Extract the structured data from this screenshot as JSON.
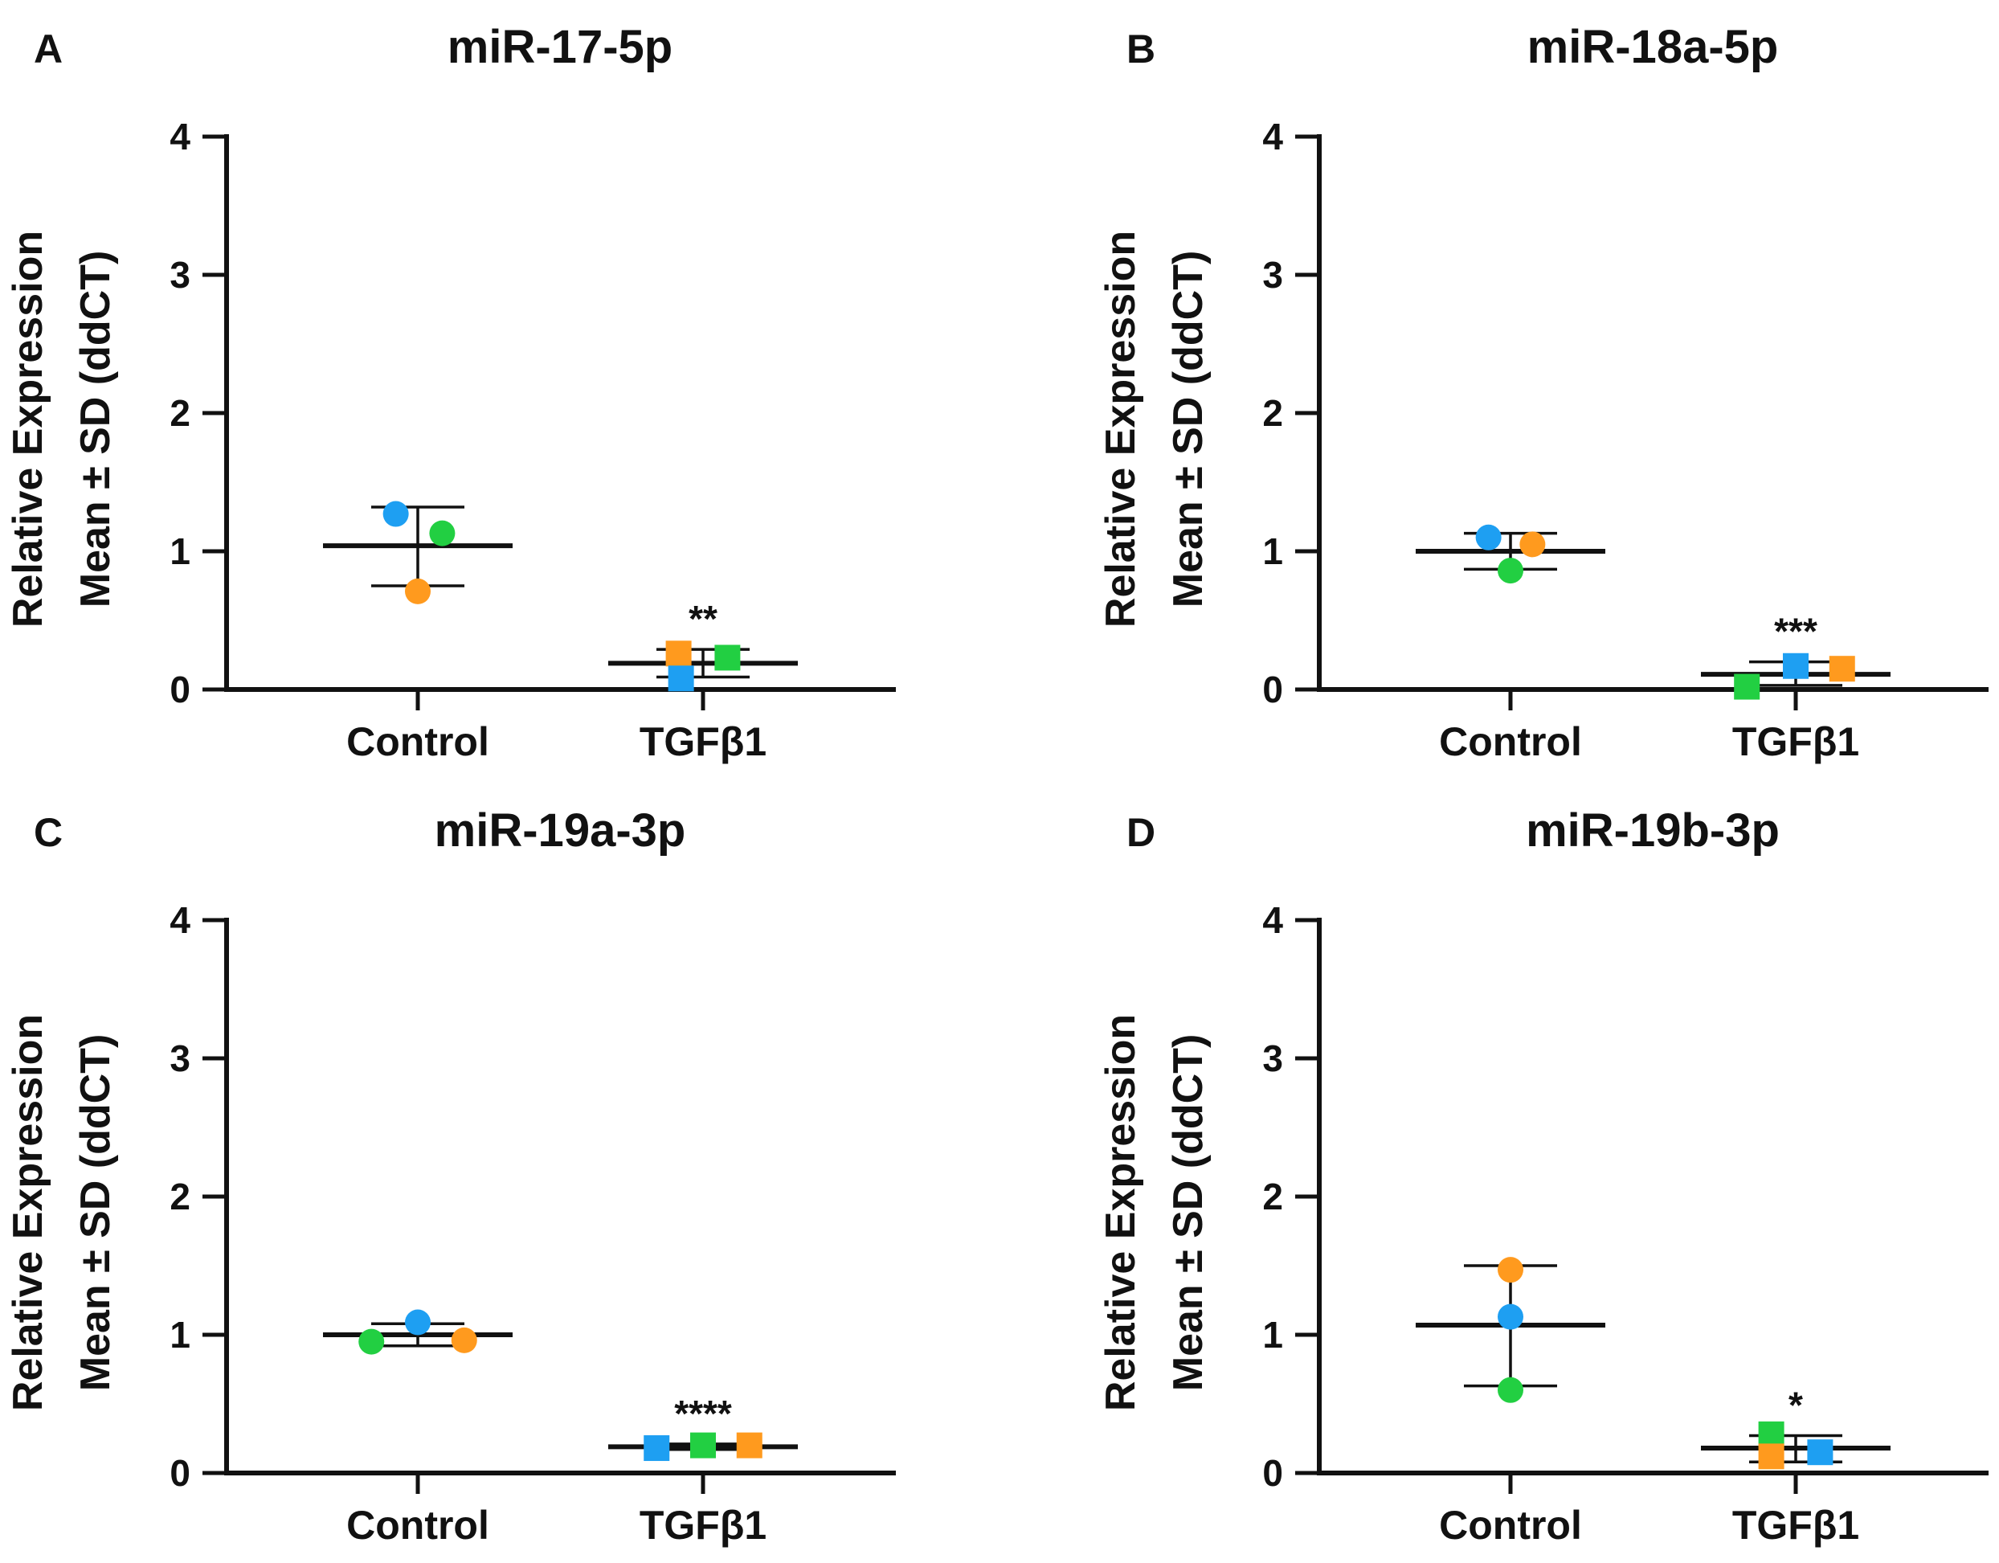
{
  "colors": {
    "blue": "#1e9ff2",
    "green": "#22cf42",
    "orange": "#ff9a1e"
  },
  "chart_data": [
    {
      "type": "scatter",
      "panel": "A",
      "title": "miR-17-5p",
      "ylabel_line1": "Relative Expression",
      "ylabel_line2": "Mean ± SD (ddCT)",
      "categories": [
        "Control",
        "TGFβ1"
      ],
      "ylim": [
        0,
        4
      ],
      "yticks": [
        "0",
        "1",
        "2",
        "3",
        "4"
      ],
      "groups": [
        {
          "name": "Control",
          "marker": "circle",
          "mean": 1.04,
          "sd_upper": 1.32,
          "sd_lower": 0.75,
          "points": [
            {
              "color": "blue",
              "y": 1.27,
              "offset": -0.18
            },
            {
              "color": "green",
              "y": 1.13,
              "offset": 0.2
            },
            {
              "color": "orange",
              "y": 0.71,
              "offset": 0.0
            }
          ]
        },
        {
          "name": "TGFβ1",
          "marker": "square",
          "mean": 0.19,
          "sd_upper": 0.29,
          "sd_lower": 0.09,
          "significance": "**",
          "points": [
            {
              "color": "orange",
              "y": 0.26,
              "offset": -0.2
            },
            {
              "color": "green",
              "y": 0.23,
              "offset": 0.2
            },
            {
              "color": "blue",
              "y": 0.08,
              "offset": -0.18
            }
          ]
        }
      ]
    },
    {
      "type": "scatter",
      "panel": "B",
      "title": "miR-18a-5p",
      "ylabel_line1": "Relative Expression",
      "ylabel_line2": "Mean ± SD (ddCT)",
      "categories": [
        "Control",
        "TGFβ1"
      ],
      "ylim": [
        0,
        4
      ],
      "yticks": [
        "0",
        "1",
        "2",
        "3",
        "4"
      ],
      "groups": [
        {
          "name": "Control",
          "marker": "circle",
          "mean": 1.0,
          "sd_upper": 1.13,
          "sd_lower": 0.87,
          "points": [
            {
              "color": "blue",
              "y": 1.1,
              "offset": -0.18
            },
            {
              "color": "orange",
              "y": 1.05,
              "offset": 0.18
            },
            {
              "color": "green",
              "y": 0.86,
              "offset": 0.0
            }
          ]
        },
        {
          "name": "TGFβ1",
          "marker": "square",
          "mean": 0.11,
          "sd_upper": 0.2,
          "sd_lower": 0.03,
          "significance": "***",
          "points": [
            {
              "color": "green",
              "y": 0.02,
              "offset": -0.4
            },
            {
              "color": "blue",
              "y": 0.17,
              "offset": 0.0
            },
            {
              "color": "orange",
              "y": 0.15,
              "offset": 0.38
            }
          ]
        }
      ]
    },
    {
      "type": "scatter",
      "panel": "C",
      "title": "miR-19a-3p",
      "ylabel_line1": "Relative Expression",
      "ylabel_line2": "Mean ± SD (ddCT)",
      "categories": [
        "Control",
        "TGFβ1"
      ],
      "ylim": [
        0,
        4
      ],
      "yticks": [
        "0",
        "1",
        "2",
        "3",
        "4"
      ],
      "groups": [
        {
          "name": "Control",
          "marker": "circle",
          "mean": 1.0,
          "sd_upper": 1.08,
          "sd_lower": 0.92,
          "points": [
            {
              "color": "green",
              "y": 0.95,
              "offset": -0.38
            },
            {
              "color": "blue",
              "y": 1.09,
              "offset": 0.0
            },
            {
              "color": "orange",
              "y": 0.96,
              "offset": 0.38
            }
          ]
        },
        {
          "name": "TGFβ1",
          "marker": "square",
          "mean": 0.19,
          "sd_upper": 0.21,
          "sd_lower": 0.17,
          "significance": "****",
          "points": [
            {
              "color": "blue",
              "y": 0.18,
              "offset": -0.38
            },
            {
              "color": "green",
              "y": 0.2,
              "offset": 0.0
            },
            {
              "color": "orange",
              "y": 0.2,
              "offset": 0.38
            }
          ]
        }
      ]
    },
    {
      "type": "scatter",
      "panel": "D",
      "title": "miR-19b-3p",
      "ylabel_line1": "Relative Expression",
      "ylabel_line2": "Mean ± SD (ddCT)",
      "categories": [
        "Control",
        "TGFβ1"
      ],
      "ylim": [
        0,
        4
      ],
      "yticks": [
        "0",
        "1",
        "2",
        "3",
        "4"
      ],
      "groups": [
        {
          "name": "Control",
          "marker": "circle",
          "mean": 1.07,
          "sd_upper": 1.5,
          "sd_lower": 0.63,
          "points": [
            {
              "color": "orange",
              "y": 1.47,
              "offset": 0.0
            },
            {
              "color": "blue",
              "y": 1.13,
              "offset": 0.0
            },
            {
              "color": "green",
              "y": 0.6,
              "offset": 0.0
            }
          ]
        },
        {
          "name": "TGFβ1",
          "marker": "square",
          "mean": 0.18,
          "sd_upper": 0.27,
          "sd_lower": 0.08,
          "significance": "*",
          "points": [
            {
              "color": "green",
              "y": 0.28,
              "offset": -0.2
            },
            {
              "color": "orange",
              "y": 0.12,
              "offset": -0.2
            },
            {
              "color": "blue",
              "y": 0.15,
              "offset": 0.2
            }
          ]
        }
      ]
    }
  ]
}
